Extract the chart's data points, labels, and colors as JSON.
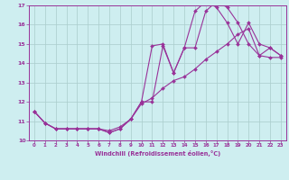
{
  "xlabel": "Windchill (Refroidissement éolien,°C)",
  "line1_x": [
    0,
    1,
    2,
    3,
    4,
    5,
    6,
    7,
    8,
    9,
    10,
    11,
    12,
    13,
    14,
    15,
    16,
    17,
    18,
    19,
    20,
    21,
    22,
    23
  ],
  "line1_y": [
    11.5,
    10.9,
    10.6,
    10.6,
    10.6,
    10.6,
    10.6,
    10.4,
    10.6,
    11.1,
    12.0,
    14.9,
    15.0,
    13.5,
    14.8,
    16.7,
    17.2,
    16.9,
    16.1,
    15.0,
    16.1,
    15.0,
    14.8,
    14.4
  ],
  "line2_x": [
    0,
    1,
    2,
    3,
    4,
    5,
    6,
    7,
    8,
    9,
    10,
    11,
    12,
    13,
    14,
    15,
    16,
    17,
    18,
    19,
    20,
    21,
    22,
    23
  ],
  "line2_y": [
    11.5,
    10.9,
    10.6,
    10.6,
    10.6,
    10.6,
    10.6,
    10.4,
    10.6,
    11.1,
    12.0,
    12.0,
    14.9,
    13.5,
    14.8,
    14.8,
    16.7,
    17.2,
    16.9,
    16.1,
    15.0,
    14.4,
    14.8,
    14.4
  ],
  "line3_x": [
    0,
    1,
    2,
    3,
    4,
    5,
    6,
    7,
    8,
    9,
    10,
    11,
    12,
    13,
    14,
    15,
    16,
    17,
    18,
    19,
    20,
    21,
    22,
    23
  ],
  "line3_y": [
    11.5,
    10.9,
    10.6,
    10.6,
    10.6,
    10.6,
    10.6,
    10.5,
    10.7,
    11.1,
    11.9,
    12.2,
    12.7,
    13.1,
    13.3,
    13.7,
    14.2,
    14.6,
    15.0,
    15.5,
    15.8,
    14.4,
    14.3,
    14.3
  ],
  "color": "#993399",
  "bg_color": "#ceeef0",
  "grid_color": "#aacccc",
  "xlim": [
    -0.5,
    23.5
  ],
  "ylim": [
    10,
    17
  ],
  "yticks": [
    10,
    11,
    12,
    13,
    14,
    15,
    16,
    17
  ],
  "xticks": [
    0,
    1,
    2,
    3,
    4,
    5,
    6,
    7,
    8,
    9,
    10,
    11,
    12,
    13,
    14,
    15,
    16,
    17,
    18,
    19,
    20,
    21,
    22,
    23
  ]
}
